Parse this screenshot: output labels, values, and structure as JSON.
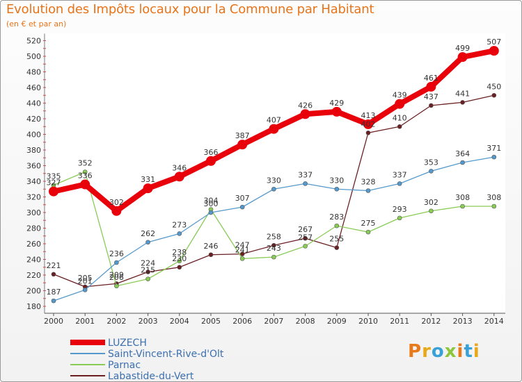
{
  "title": "Evolution des Impôts locaux pour la Commune par Habitant",
  "subtitle": "(en € et par an)",
  "logo_text": "Proxiti",
  "chart_data": {
    "type": "line",
    "x": [
      "2000",
      "2001",
      "2002",
      "2003",
      "2004",
      "2005",
      "2006",
      "2007",
      "2008",
      "2009",
      "2010",
      "2011",
      "2012",
      "2013",
      "2014"
    ],
    "ylim": [
      180,
      520
    ],
    "yticks": [
      180,
      200,
      220,
      240,
      260,
      280,
      300,
      320,
      340,
      360,
      380,
      400,
      420,
      440,
      460,
      480,
      500,
      520
    ],
    "grid": false,
    "legend_position": "bottom",
    "series": [
      {
        "name": "LUZECH",
        "color": "#e8000b",
        "values": [
          327,
          336,
          302,
          331,
          346,
          366,
          387,
          407,
          426,
          429,
          413,
          439,
          461,
          499,
          507
        ]
      },
      {
        "name": "Saint-Vincent-Rive-d'Olt",
        "color": "#5599cc",
        "values": [
          187,
          201,
          236,
          262,
          273,
          300,
          307,
          330,
          337,
          330,
          328,
          337,
          353,
          364,
          371
        ]
      },
      {
        "name": "Parnac",
        "color": "#88cc55",
        "values": [
          335,
          352,
          206,
          215,
          238,
          304,
          241,
          243,
          257,
          283,
          275,
          293,
          302,
          308,
          308
        ]
      },
      {
        "name": "Labastide-du-Vert",
        "color": "#6a1f22",
        "values": [
          221,
          205,
          209,
          224,
          230,
          246,
          247,
          258,
          267,
          255,
          402,
          410,
          437,
          441,
          450
        ]
      }
    ],
    "point_labels": {
      "LUZECH": [
        327,
        336,
        302,
        331,
        346,
        366,
        387,
        407,
        426,
        429,
        413,
        439,
        461,
        499,
        507
      ],
      "Saint-Vincent-Rive-d'Olt": [
        187,
        201,
        236,
        262,
        273,
        300,
        307,
        330,
        337,
        330,
        328,
        337,
        353,
        364,
        371
      ],
      "Parnac": [
        335,
        352,
        206,
        215,
        238,
        304,
        241,
        243,
        257,
        283,
        275,
        293,
        302,
        308,
        308
      ],
      "Labastide-du-Vert": [
        221,
        205,
        209,
        224,
        230,
        246,
        247,
        258,
        267,
        255,
        402,
        410,
        437,
        441,
        450
      ]
    }
  }
}
